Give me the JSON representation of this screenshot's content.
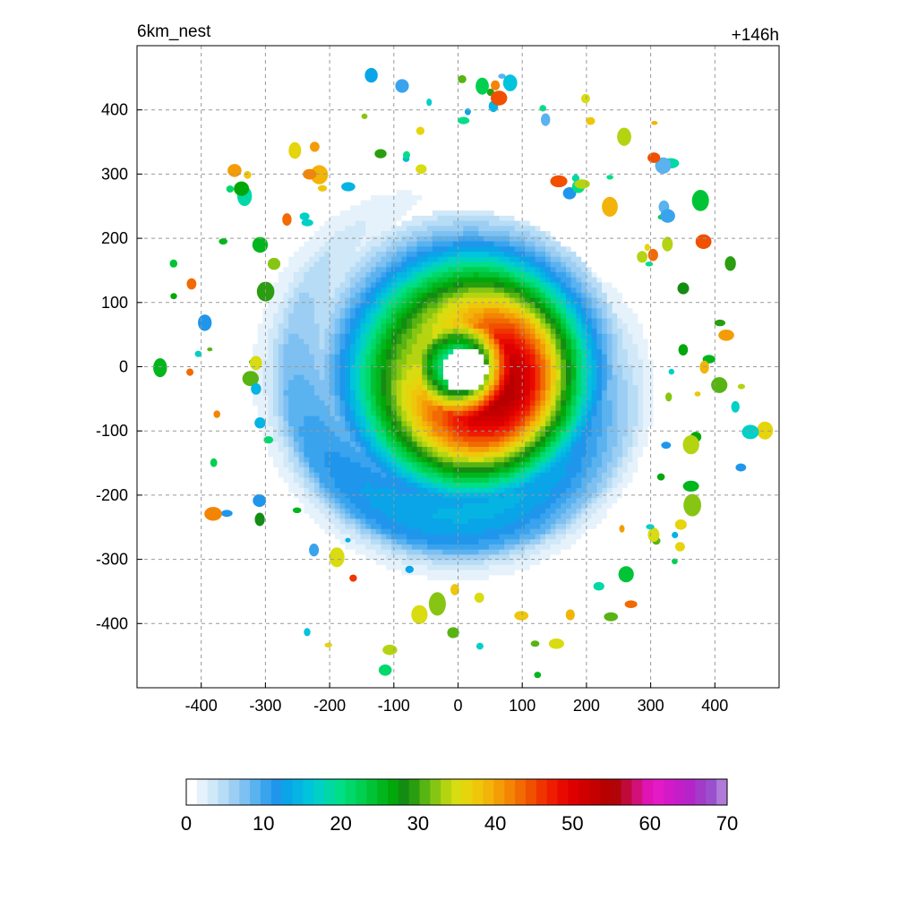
{
  "chart_data": {
    "type": "heatmap",
    "title_left": "6km_nest",
    "title_right": "+146h",
    "xlabel": "",
    "ylabel": "",
    "xlim": [
      -500,
      500
    ],
    "ylim": [
      -500,
      500
    ],
    "x_ticks": [
      -400,
      -300,
      -200,
      -100,
      0,
      100,
      200,
      300,
      400
    ],
    "y_ticks": [
      400,
      300,
      200,
      100,
      0,
      -100,
      -200,
      -300,
      -400
    ],
    "grid": true,
    "field": {
      "description_of_structure": "spiral band wind field",
      "eye_center": [
        10,
        -5
      ],
      "eye_radius": 35,
      "max_value_location": [
        60,
        -30
      ],
      "max_value": 55,
      "outer_radius": 300
    },
    "colorbar": {
      "min": 0,
      "max": 70,
      "ticks": [
        0,
        10,
        20,
        30,
        40,
        50,
        60,
        70
      ],
      "colors": [
        "#ffffff",
        "#e6f2fb",
        "#d0e8f8",
        "#b7dcf5",
        "#9ccef3",
        "#7dc0f1",
        "#5ab2ef",
        "#3aa3ee",
        "#1f96ec",
        "#0aa4e8",
        "#05b4e2",
        "#00c3dc",
        "#00d0c6",
        "#00d8a6",
        "#00de88",
        "#00d86c",
        "#00cf50",
        "#00c336",
        "#00b61c",
        "#00a80a",
        "#148c14",
        "#2a9d10",
        "#58b412",
        "#86c612",
        "#b4d412",
        "#d8dc10",
        "#e6d40c",
        "#eec60a",
        "#f2b408",
        "#f49c06",
        "#f48404",
        "#f26a02",
        "#f05000",
        "#f03400",
        "#ee1c00",
        "#e80a00",
        "#de0000",
        "#d00000",
        "#c40000",
        "#b80000",
        "#b00408",
        "#c00a3a",
        "#d2107a",
        "#e014b4",
        "#e41ac6",
        "#d41ac8",
        "#c41ec8",
        "#b424c8",
        "#a43ac8",
        "#9a50cc",
        "#b07ad8"
      ]
    }
  }
}
